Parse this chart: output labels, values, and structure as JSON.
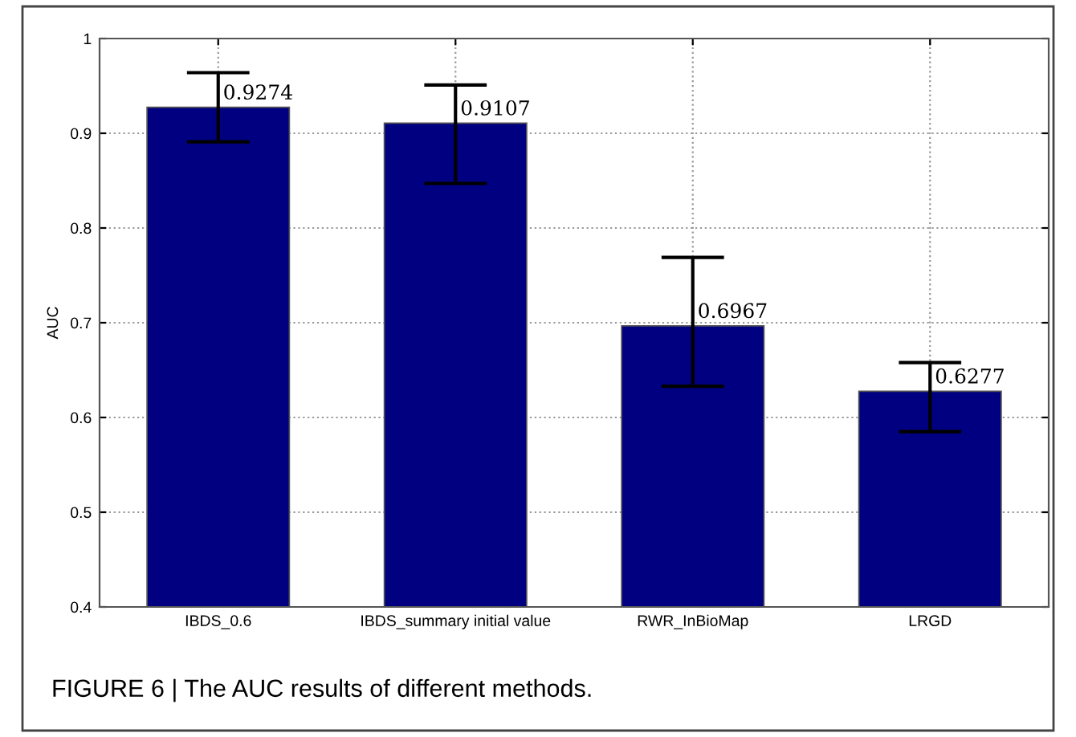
{
  "chart_data": {
    "type": "bar",
    "ylabel": "AUC",
    "categories": [
      "IBDS_0.6",
      "IBDS_summary initial value",
      "RWR_InBioMap",
      "LRGD"
    ],
    "values": [
      0.9274,
      0.9107,
      0.6967,
      0.6277
    ],
    "errors": [
      [
        0.891,
        0.964
      ],
      [
        0.847,
        0.951
      ],
      [
        0.633,
        0.769
      ],
      [
        0.585,
        0.658
      ]
    ],
    "color": "#000080",
    "ylim": [
      0.4,
      1
    ],
    "yticks": [
      0.4,
      0.5,
      0.6,
      0.7,
      0.8,
      0.9,
      1
    ],
    "grid": true,
    "data_labels": true,
    "annotations": [
      "FIGURE 6 | The AUC results of different methods."
    ]
  }
}
